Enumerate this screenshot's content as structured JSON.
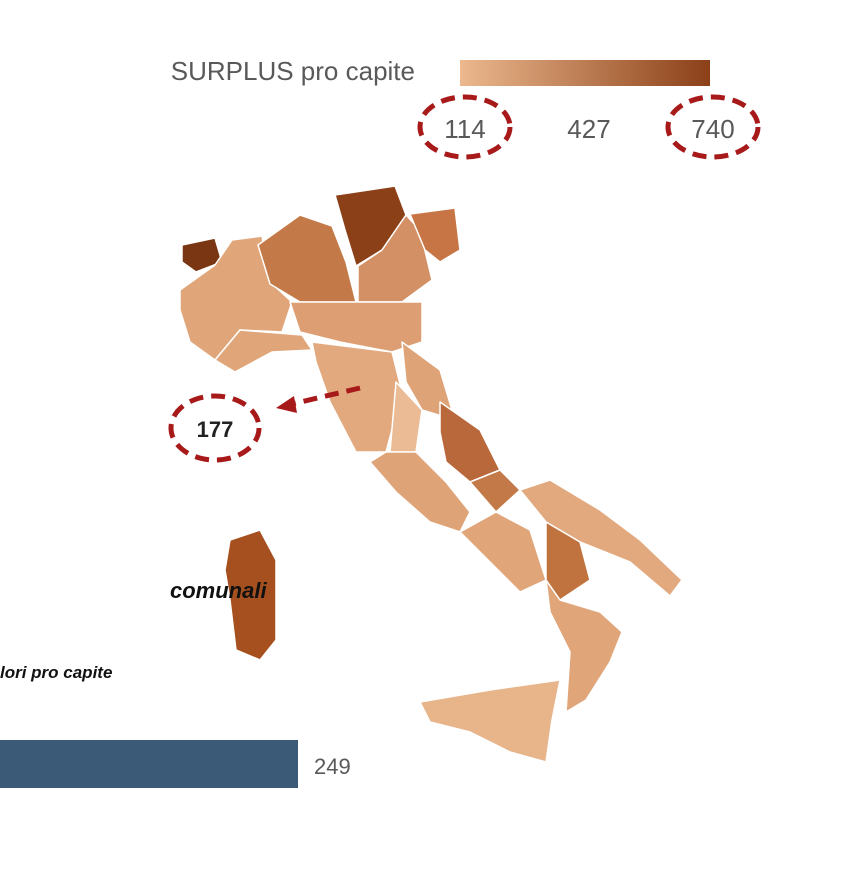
{
  "legend": {
    "title": "SURPLUS pro capite",
    "ticks": [
      114,
      427,
      740
    ],
    "colors": [
      "#ecb88e",
      "#8b4018"
    ]
  },
  "callout": {
    "label": "177"
  },
  "text": {
    "heading": "comunali",
    "subheading": "lori pro capite"
  },
  "bar": {
    "label": "249"
  }
}
